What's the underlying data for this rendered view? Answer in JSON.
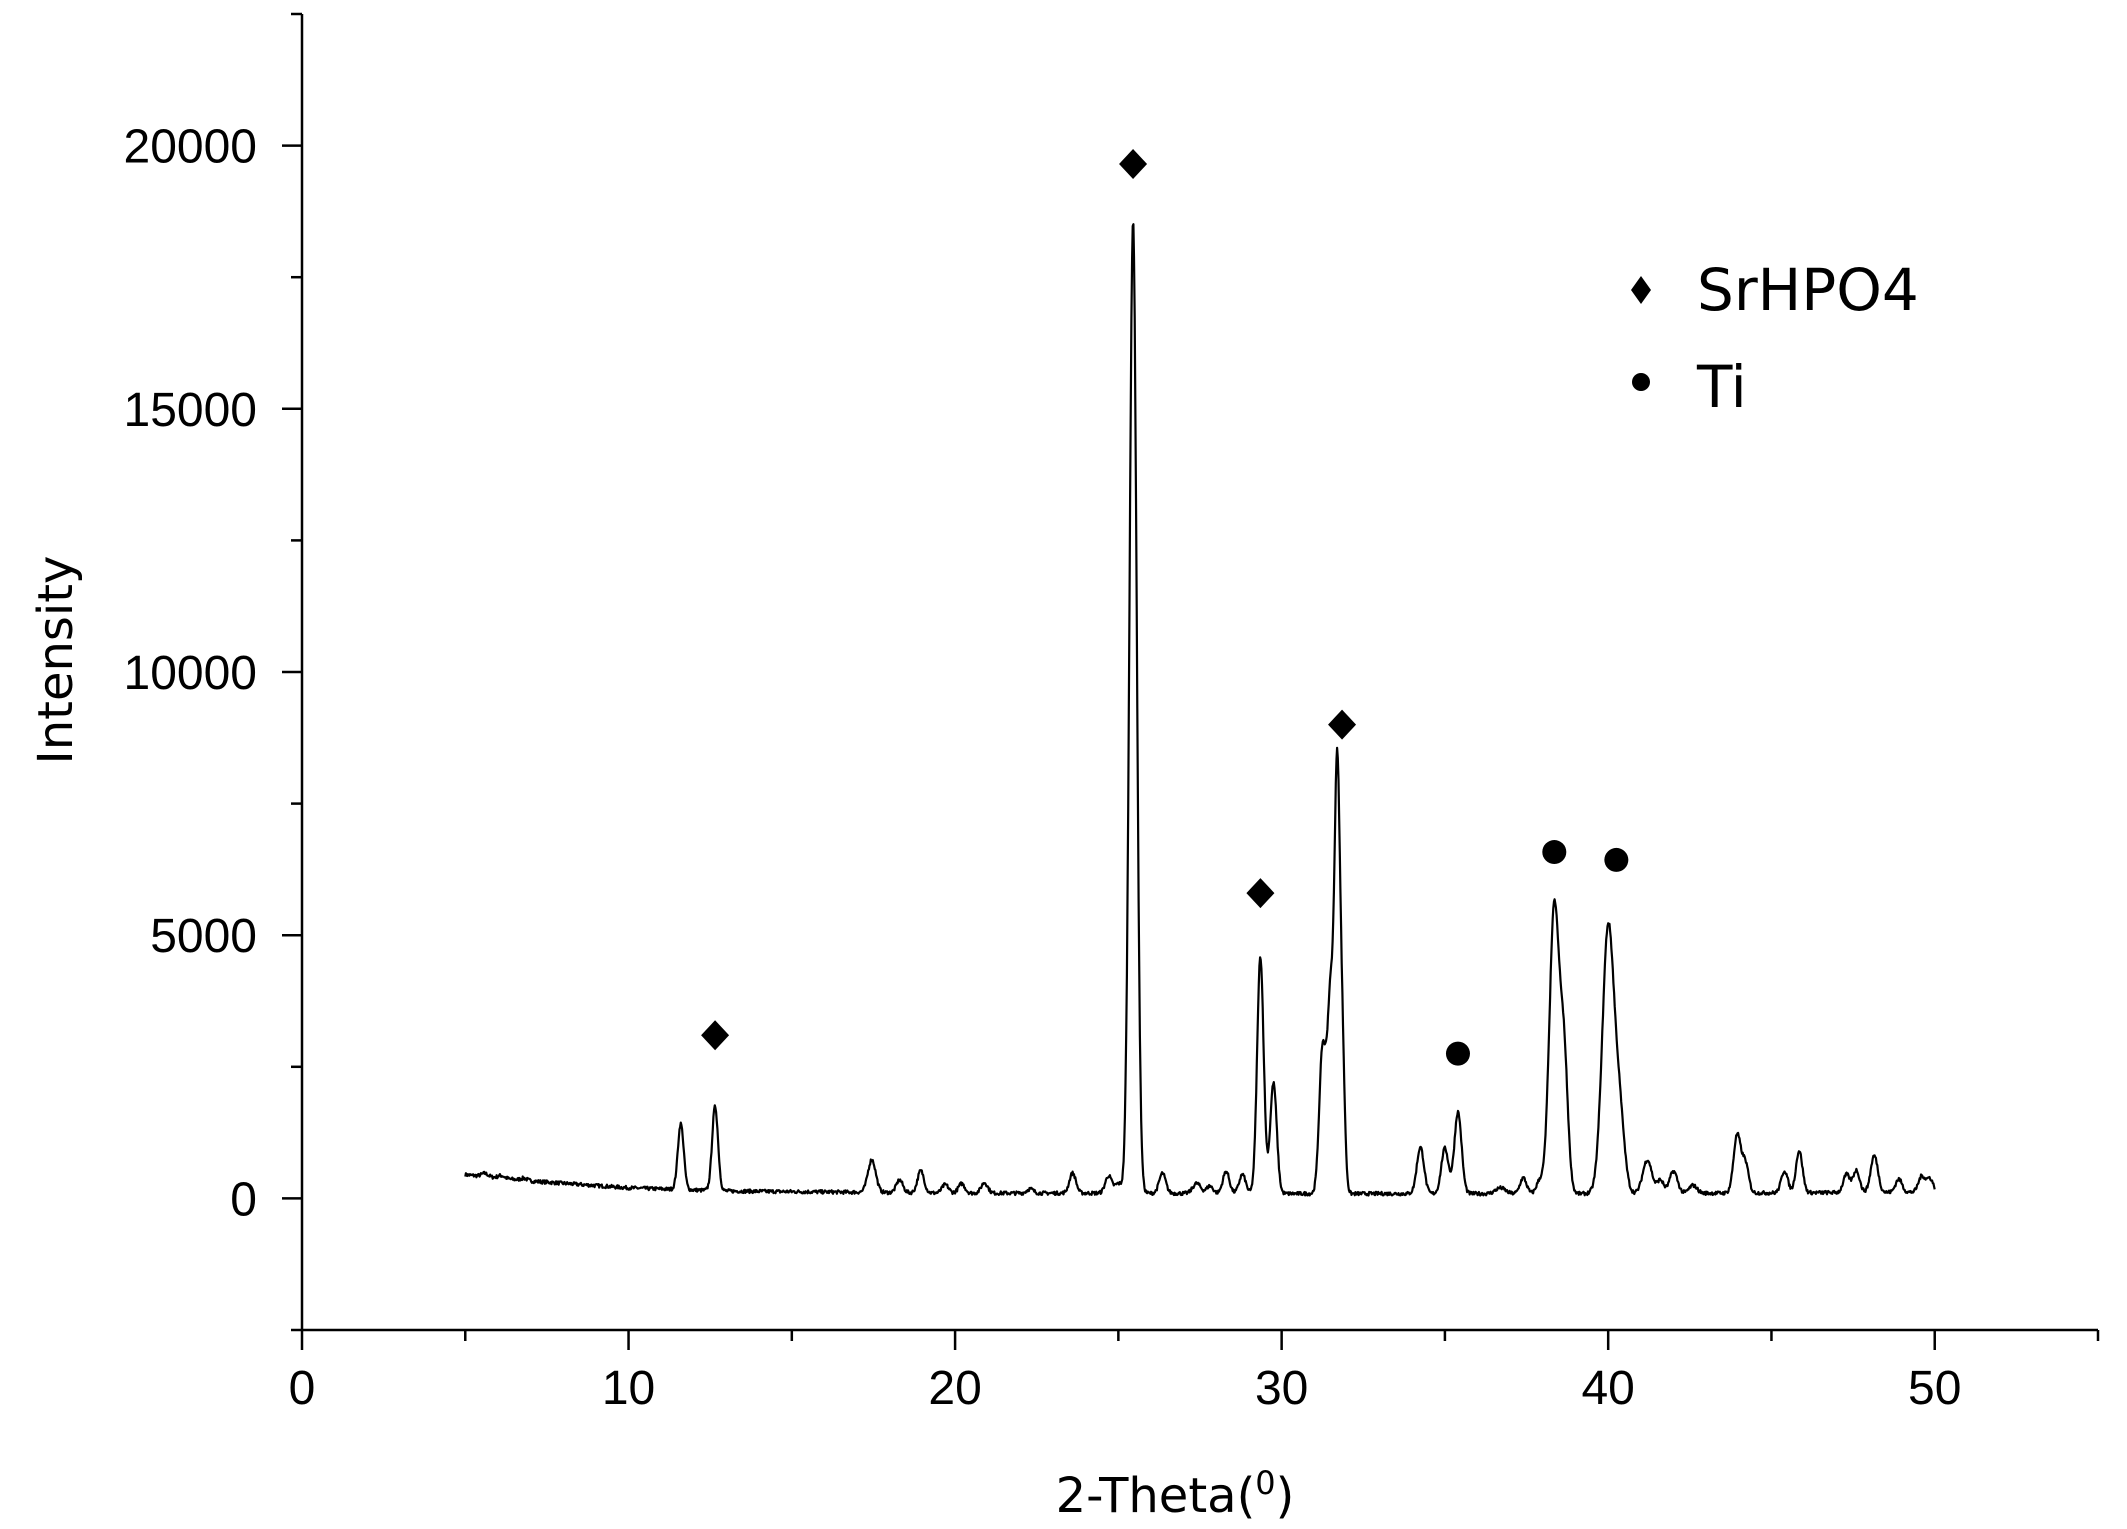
{
  "chart_data": {
    "type": "line",
    "title": "",
    "xlabel": "2-Theta(",
    "xlabel_superscript": "0",
    "xlabel_close": ")",
    "ylabel": "Intensity",
    "xlim": [
      0,
      55
    ],
    "ylim": [
      -2500,
      22500
    ],
    "x_ticks": [
      0,
      10,
      20,
      30,
      40,
      50
    ],
    "y_ticks": [
      0,
      5000,
      10000,
      15000,
      20000
    ],
    "grid": false,
    "legend_position": "top-right",
    "colors": {
      "line": "#000000",
      "marker": "#000000",
      "background": "#ffffff"
    },
    "series": [
      {
        "x_range": [
          5,
          50
        ],
        "baseline": [
          [
            5,
            450
          ],
          [
            7,
            330
          ],
          [
            10,
            200
          ],
          [
            13,
            140
          ],
          [
            20,
            100
          ],
          [
            25,
            100
          ],
          [
            30,
            90
          ],
          [
            40,
            90
          ],
          [
            50,
            120
          ]
        ],
        "peaks": [
          [
            5.6,
            60,
            0.1
          ],
          [
            6.1,
            50,
            0.1
          ],
          [
            6.8,
            40,
            0.1
          ],
          [
            11.6,
            1250,
            0.09
          ],
          [
            12.65,
            1600,
            0.09
          ],
          [
            17.45,
            620,
            0.12
          ],
          [
            18.3,
            240,
            0.1
          ],
          [
            18.95,
            420,
            0.1
          ],
          [
            19.7,
            160,
            0.1
          ],
          [
            20.2,
            180,
            0.1
          ],
          [
            20.9,
            200,
            0.1
          ],
          [
            22.3,
            80,
            0.1
          ],
          [
            23.6,
            380,
            0.1
          ],
          [
            24.7,
            330,
            0.1
          ],
          [
            25.0,
            180,
            0.1
          ],
          [
            25.45,
            18450,
            0.11
          ],
          [
            26.35,
            380,
            0.1
          ],
          [
            27.4,
            190,
            0.12
          ],
          [
            27.8,
            140,
            0.1
          ],
          [
            28.3,
            420,
            0.1
          ],
          [
            28.8,
            360,
            0.1
          ],
          [
            29.35,
            4500,
            0.1
          ],
          [
            29.75,
            2100,
            0.1
          ],
          [
            31.25,
            2700,
            0.1
          ],
          [
            31.5,
            3750,
            0.1
          ],
          [
            31.7,
            7450,
            0.08
          ],
          [
            31.85,
            2800,
            0.08
          ],
          [
            34.25,
            880,
            0.11
          ],
          [
            35.0,
            860,
            0.11
          ],
          [
            35.4,
            1550,
            0.11
          ],
          [
            36.7,
            110,
            0.15
          ],
          [
            37.4,
            300,
            0.1
          ],
          [
            37.9,
            230,
            0.1
          ],
          [
            38.35,
            5450,
            0.15
          ],
          [
            38.65,
            2450,
            0.12
          ],
          [
            40.0,
            5050,
            0.18
          ],
          [
            40.35,
            1400,
            0.15
          ],
          [
            41.2,
            640,
            0.14
          ],
          [
            41.6,
            250,
            0.1
          ],
          [
            42.0,
            420,
            0.12
          ],
          [
            42.6,
            150,
            0.12
          ],
          [
            43.95,
            1100,
            0.11
          ],
          [
            44.2,
            560,
            0.1
          ],
          [
            45.4,
            420,
            0.1
          ],
          [
            45.85,
            800,
            0.1
          ],
          [
            47.3,
            340,
            0.1
          ],
          [
            47.6,
            420,
            0.1
          ],
          [
            48.15,
            700,
            0.11
          ],
          [
            48.9,
            250,
            0.1
          ],
          [
            49.6,
            300,
            0.1
          ],
          [
            49.85,
            260,
            0.1
          ]
        ]
      }
    ],
    "annotations": [
      {
        "x": 12.65,
        "y": 3100,
        "marker": "diamond",
        "phase": "SrHPO4"
      },
      {
        "x": 25.45,
        "y": 19650,
        "marker": "diamond",
        "phase": "SrHPO4"
      },
      {
        "x": 29.35,
        "y": 5800,
        "marker": "diamond",
        "phase": "SrHPO4"
      },
      {
        "x": 31.85,
        "y": 9000,
        "marker": "diamond",
        "phase": "SrHPO4"
      },
      {
        "x": 35.4,
        "y": 2750,
        "marker": "circle",
        "phase": "Ti"
      },
      {
        "x": 38.35,
        "y": 6580,
        "marker": "circle",
        "phase": "Ti"
      },
      {
        "x": 40.25,
        "y": 6430,
        "marker": "circle",
        "phase": "Ti"
      }
    ],
    "legend": [
      {
        "marker": "diamond",
        "label": "SrHPO4"
      },
      {
        "marker": "circle",
        "label": "Ti"
      }
    ]
  }
}
